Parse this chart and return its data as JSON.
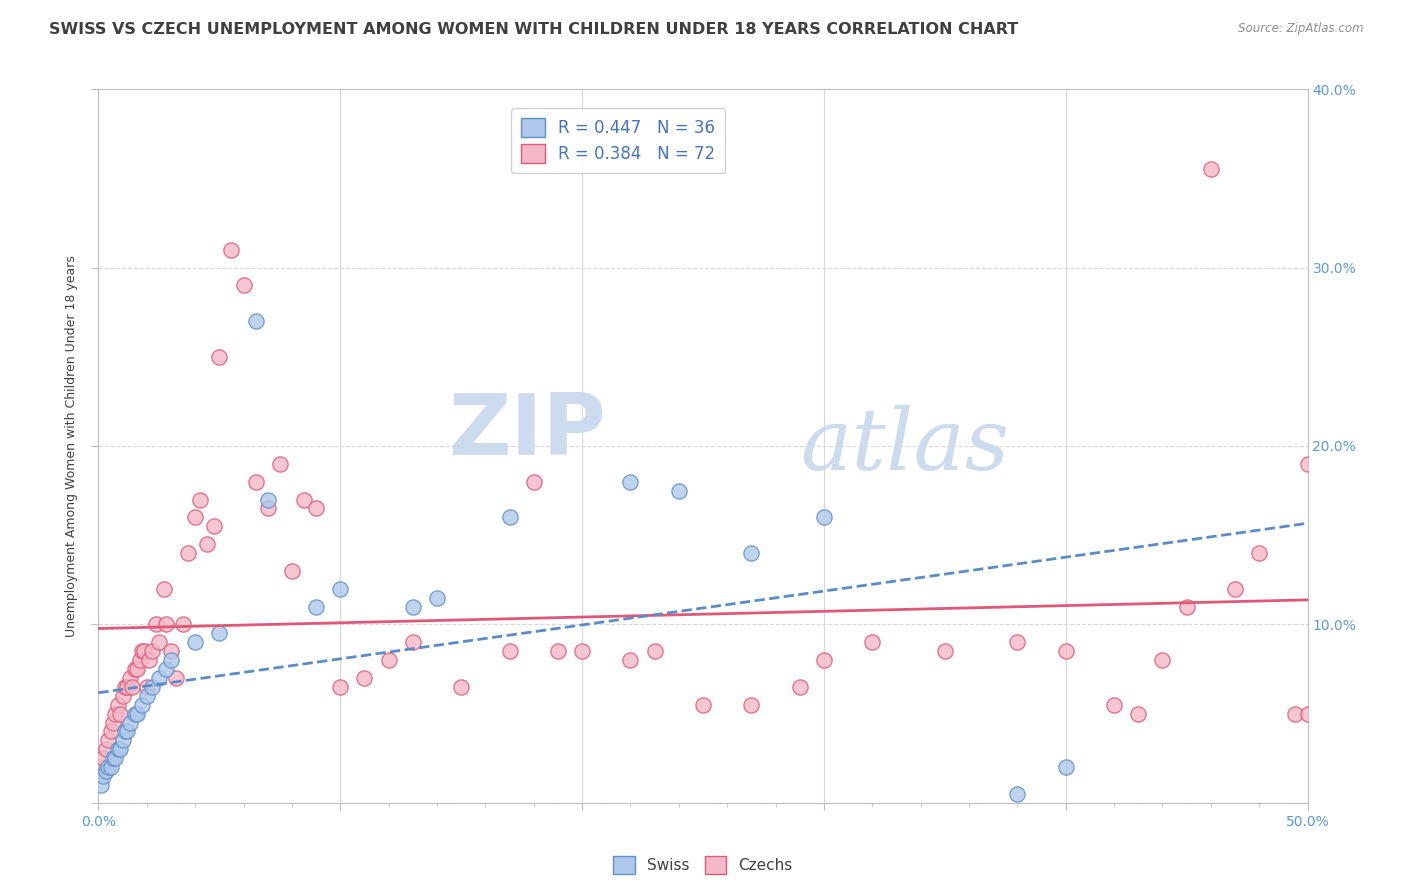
{
  "title": "SWISS VS CZECH UNEMPLOYMENT AMONG WOMEN WITH CHILDREN UNDER 18 YEARS CORRELATION CHART",
  "source": "Source: ZipAtlas.com",
  "ylabel": "Unemployment Among Women with Children Under 18 years",
  "xlim": [
    0.0,
    0.5
  ],
  "ylim": [
    0.0,
    0.4
  ],
  "xticks": [
    0.0,
    0.1,
    0.2,
    0.3,
    0.4,
    0.5
  ],
  "yticks": [
    0.0,
    0.1,
    0.2,
    0.3,
    0.4
  ],
  "xtick_labels": [
    "0.0%",
    "",
    "",
    "",
    "",
    "50.0%"
  ],
  "ytick_labels_right": [
    "",
    "10.0%",
    "20.0%",
    "30.0%",
    "40.0%"
  ],
  "swiss_color": "#aec8ea",
  "czech_color": "#f5b8c8",
  "swiss_edge_color": "#6090c8",
  "czech_edge_color": "#e05878",
  "swiss_line_color": "#5b8cc8",
  "czech_line_color": "#e05878",
  "title_color": "#404040",
  "source_color": "#909090",
  "axis_label_color": "#5b9bd5",
  "legend_text_color": "#4472c4",
  "swiss_R": 0.447,
  "swiss_N": 36,
  "czech_R": 0.384,
  "czech_N": 72,
  "swiss_x": [
    0.001,
    0.002,
    0.003,
    0.004,
    0.005,
    0.006,
    0.007,
    0.008,
    0.009,
    0.01,
    0.011,
    0.012,
    0.013,
    0.015,
    0.016,
    0.018,
    0.02,
    0.022,
    0.025,
    0.028,
    0.03,
    0.04,
    0.05,
    0.065,
    0.07,
    0.09,
    0.1,
    0.13,
    0.14,
    0.17,
    0.22,
    0.24,
    0.27,
    0.3,
    0.38,
    0.4
  ],
  "swiss_y": [
    0.01,
    0.015,
    0.018,
    0.02,
    0.02,
    0.025,
    0.025,
    0.03,
    0.03,
    0.035,
    0.04,
    0.04,
    0.045,
    0.05,
    0.05,
    0.055,
    0.06,
    0.065,
    0.07,
    0.075,
    0.08,
    0.09,
    0.095,
    0.27,
    0.17,
    0.11,
    0.12,
    0.11,
    0.115,
    0.16,
    0.18,
    0.175,
    0.14,
    0.16,
    0.005,
    0.02
  ],
  "czech_x": [
    0.001,
    0.002,
    0.003,
    0.004,
    0.005,
    0.006,
    0.007,
    0.008,
    0.009,
    0.01,
    0.011,
    0.012,
    0.013,
    0.014,
    0.015,
    0.016,
    0.017,
    0.018,
    0.019,
    0.02,
    0.021,
    0.022,
    0.024,
    0.025,
    0.027,
    0.028,
    0.03,
    0.032,
    0.035,
    0.037,
    0.04,
    0.042,
    0.045,
    0.048,
    0.05,
    0.055,
    0.06,
    0.065,
    0.07,
    0.075,
    0.08,
    0.085,
    0.09,
    0.1,
    0.11,
    0.12,
    0.13,
    0.15,
    0.17,
    0.18,
    0.19,
    0.2,
    0.22,
    0.23,
    0.25,
    0.27,
    0.29,
    0.3,
    0.32,
    0.35,
    0.38,
    0.4,
    0.42,
    0.43,
    0.44,
    0.45,
    0.46,
    0.47,
    0.48,
    0.495,
    0.5,
    0.5
  ],
  "czech_y": [
    0.02,
    0.025,
    0.03,
    0.035,
    0.04,
    0.045,
    0.05,
    0.055,
    0.05,
    0.06,
    0.065,
    0.065,
    0.07,
    0.065,
    0.075,
    0.075,
    0.08,
    0.085,
    0.085,
    0.065,
    0.08,
    0.085,
    0.1,
    0.09,
    0.12,
    0.1,
    0.085,
    0.07,
    0.1,
    0.14,
    0.16,
    0.17,
    0.145,
    0.155,
    0.25,
    0.31,
    0.29,
    0.18,
    0.165,
    0.19,
    0.13,
    0.17,
    0.165,
    0.065,
    0.07,
    0.08,
    0.09,
    0.065,
    0.085,
    0.18,
    0.085,
    0.085,
    0.08,
    0.085,
    0.055,
    0.055,
    0.065,
    0.08,
    0.09,
    0.085,
    0.09,
    0.085,
    0.055,
    0.05,
    0.08,
    0.11,
    0.355,
    0.12,
    0.14,
    0.05,
    0.05,
    0.19
  ],
  "background_color": "#ffffff",
  "grid_color": "#d8d8d8",
  "watermark_zip": "ZIP",
  "watermark_atlas": "atlas",
  "watermark_color": "#ccdcee",
  "marker_size": 120,
  "title_fontsize": 11.5,
  "axis_tick_fontsize": 10,
  "ylabel_fontsize": 9,
  "legend_fontsize": 12
}
